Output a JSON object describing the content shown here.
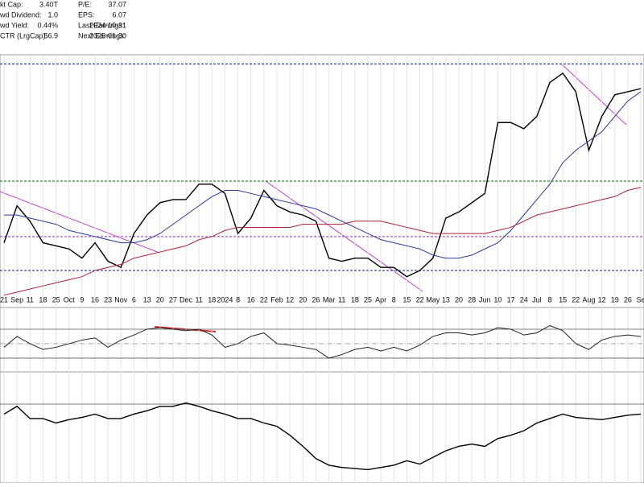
{
  "header": {
    "stats": [
      {
        "label": "kt Cap:",
        "value": "3.40T"
      },
      {
        "label": "wd Dividend:",
        "value": "1.0"
      },
      {
        "label": "wd Yield:",
        "value": "0.44%"
      },
      {
        "label": "CTR (LrgCap):",
        "value": "56.9"
      },
      {
        "label": "P/E:",
        "value": "37.07"
      },
      {
        "label": "EPS:",
        "value": "6.07"
      },
      {
        "label": "Last Earnings:",
        "value": "2024-10-31"
      },
      {
        "label": "Next Earnings:",
        "value": "2025-01-30"
      }
    ]
  },
  "chart_data": [
    {
      "type": "line",
      "categories": [
        "21",
        "Sep",
        "11",
        "18",
        "25",
        "Oct",
        "9",
        "16",
        "23",
        "Nov",
        "6",
        "13",
        "20",
        "27",
        "Dec",
        "11",
        "18",
        "2024",
        "8",
        "16",
        "22",
        "Feb",
        "12",
        "20",
        "26",
        "Mar",
        "11",
        "18",
        "25",
        "Apr",
        "8",
        "15",
        "22",
        "May",
        "13",
        "20",
        "28",
        "Jun",
        "10",
        "17",
        "24",
        "Jul",
        "8",
        "15",
        "22",
        "Aug",
        "12",
        "19",
        "26",
        "Se"
      ],
      "ylim": [
        158,
        240
      ],
      "grid": true,
      "series": [
        {
          "color": "#000000",
          "values": [
            179,
            191,
            186,
            179,
            178,
            177,
            174,
            179,
            173,
            171,
            182,
            188,
            192,
            193,
            193,
            198,
            198,
            195,
            182,
            187,
            196,
            191,
            189,
            188,
            186,
            174,
            173,
            174,
            174,
            171,
            171,
            168,
            170,
            174,
            187,
            189,
            192,
            195,
            218,
            218,
            216,
            220,
            231,
            234,
            228,
            209,
            220,
            227,
            228,
            229
          ]
        },
        {
          "color": "#2a3a9a",
          "values": [
            188,
            188,
            187,
            186,
            185,
            183,
            182,
            181,
            180,
            179,
            179,
            180,
            182,
            185,
            188,
            191,
            194,
            196,
            196,
            195,
            194,
            193,
            192,
            191,
            190,
            188,
            186,
            184,
            182,
            180,
            179,
            178,
            177,
            175,
            174,
            174,
            175,
            177,
            179,
            183,
            188,
            193,
            198,
            205,
            209,
            212,
            215,
            220,
            225,
            228
          ]
        },
        {
          "color": "#b0203a",
          "values": [
            162,
            163,
            164,
            165,
            166,
            167,
            168,
            170,
            171,
            172,
            174,
            175,
            176,
            177,
            178,
            180,
            181,
            183,
            184,
            184,
            184,
            184,
            184,
            185,
            185,
            185,
            185,
            186,
            186,
            186,
            185,
            184,
            183,
            182,
            182,
            182,
            182,
            182,
            183,
            184,
            186,
            188,
            189,
            190,
            191,
            192,
            193,
            194,
            196,
            197
          ]
        }
      ],
      "levels": [
        {
          "value": 237,
          "color": "#2a3a9a"
        },
        {
          "value": 199,
          "color": "#2e8b2e"
        },
        {
          "value": 181,
          "color": "#a040c0"
        },
        {
          "value": 170,
          "color": "#2a3a9a"
        }
      ]
    },
    {
      "type": "line",
      "ylim": [
        11,
        100
      ],
      "series": [
        {
          "color": "#222222",
          "values": [
            45,
            60,
            50,
            42,
            45,
            50,
            55,
            58,
            45,
            55,
            62,
            70,
            72,
            70,
            68,
            70,
            62,
            45,
            50,
            60,
            65,
            50,
            48,
            45,
            42,
            30,
            35,
            42,
            45,
            40,
            45,
            40,
            48,
            60,
            65,
            65,
            62,
            65,
            72,
            70,
            62,
            65,
            75,
            68,
            50,
            42,
            55,
            60,
            62,
            60
          ]
        }
      ],
      "levels": [
        {
          "value": 70,
          "color": "#555555"
        },
        {
          "value": 50,
          "color": "#999999"
        },
        {
          "value": 30,
          "color": "#555555"
        }
      ]
    },
    {
      "type": "line",
      "ylim": [
        0,
        100
      ],
      "series": [
        {
          "color": "#000000",
          "values": [
            62,
            69,
            58,
            58,
            54,
            57,
            59,
            62,
            58,
            58,
            62,
            65,
            69,
            69,
            72,
            69,
            65,
            62,
            58,
            58,
            54,
            51,
            43,
            33,
            22,
            16,
            14,
            13,
            12,
            14,
            16,
            20,
            17,
            23,
            29,
            33,
            35,
            33,
            40,
            43,
            47,
            54,
            58,
            62,
            59,
            58,
            57,
            59,
            61,
            62
          ]
        }
      ],
      "levels": [
        {
          "value": 71,
          "color": "#555555"
        }
      ]
    }
  ]
}
